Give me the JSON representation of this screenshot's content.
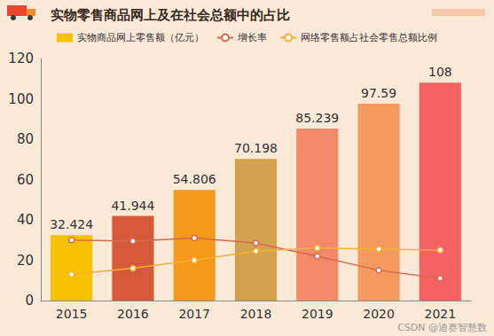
{
  "chart_data": {
    "type": "bar",
    "title": "实物零售商品网上及在社会总额中的占比",
    "categories": [
      "2015",
      "2016",
      "2017",
      "2018",
      "2019",
      "2020",
      "2021"
    ],
    "series": [
      {
        "name": "实物商品网上零售额（亿元）",
        "type": "bar",
        "colors": [
          "#f7c000",
          "#d45a3a",
          "#f5981c",
          "#d2a24e",
          "#f4886a",
          "#f59a5e",
          "#f56262"
        ],
        "values": [
          32.424,
          41.944,
          54.806,
          70.198,
          85.239,
          97.59,
          108
        ],
        "data_labels": true
      },
      {
        "name": "增长率",
        "type": "line",
        "color": "#d9684e",
        "marker": "circle",
        "values": [
          30,
          29.5,
          31,
          28.5,
          22,
          15,
          11
        ]
      },
      {
        "name": "网络零售额占社会零售总额比例",
        "type": "line",
        "color": "#f5b02e",
        "marker": "circle",
        "values": [
          13,
          16,
          20,
          24.5,
          26,
          25.5,
          25
        ]
      }
    ],
    "ylim": [
      0,
      120
    ],
    "yticks": [
      0,
      20,
      40,
      60,
      80,
      100,
      120
    ],
    "grid": false,
    "legend": "top",
    "annotations": [
      "CSDN @迪赛智慧数"
    ]
  }
}
